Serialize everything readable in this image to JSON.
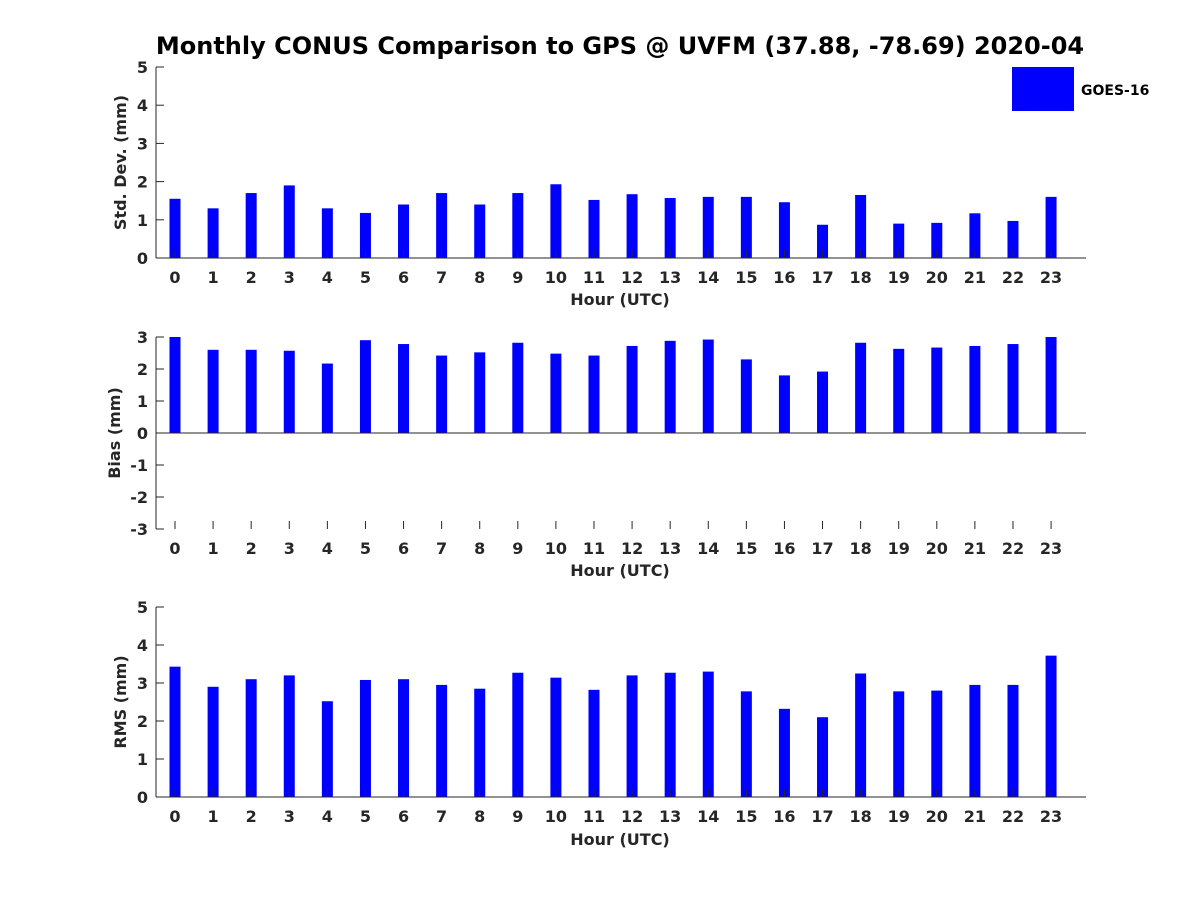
{
  "chart_data": {
    "title": "Monthly CONUS Comparison to GPS @ UVFM (37.88, -78.69) 2020-04",
    "legend": {
      "label": "GOES-16",
      "color": "#0000ff",
      "placement": "top-right"
    },
    "categories": [
      "0",
      "1",
      "2",
      "3",
      "4",
      "5",
      "6",
      "7",
      "8",
      "9",
      "10",
      "11",
      "12",
      "13",
      "14",
      "15",
      "16",
      "17",
      "18",
      "19",
      "20",
      "21",
      "22",
      "23"
    ],
    "panels": [
      {
        "type": "bar",
        "ylabel": "Std. Dev. (mm)",
        "xlabel": "Hour (UTC)",
        "ylim": [
          0,
          5
        ],
        "yticks": [
          "0",
          "1",
          "2",
          "3",
          "4",
          "5"
        ],
        "series": [
          {
            "name": "GOES-16",
            "color": "#0000ff",
            "values": [
              1.55,
              1.3,
              1.7,
              1.9,
              1.3,
              1.18,
              1.4,
              1.7,
              1.4,
              1.7,
              1.93,
              1.52,
              1.67,
              1.57,
              1.6,
              1.6,
              1.46,
              0.87,
              1.65,
              0.9,
              0.92,
              1.17,
              0.97,
              1.6
            ]
          }
        ]
      },
      {
        "type": "bar",
        "ylabel": "Bias (mm)",
        "xlabel": "Hour (UTC)",
        "ylim": [
          -3,
          3
        ],
        "yticks": [
          "-3",
          "-2",
          "-1",
          "0",
          "1",
          "2",
          "3"
        ],
        "series": [
          {
            "name": "GOES-16",
            "color": "#0000ff",
            "values": [
              3.0,
              2.6,
              2.6,
              2.57,
              2.17,
              2.9,
              2.78,
              2.42,
              2.52,
              2.82,
              2.48,
              2.42,
              2.72,
              2.88,
              2.92,
              2.3,
              1.8,
              1.92,
              2.82,
              2.63,
              2.67,
              2.72,
              2.78,
              3.0
            ]
          }
        ]
      },
      {
        "type": "bar",
        "ylabel": "RMS (mm)",
        "xlabel": "Hour (UTC)",
        "ylim": [
          0,
          5
        ],
        "yticks": [
          "0",
          "1",
          "2",
          "3",
          "4",
          "5"
        ],
        "series": [
          {
            "name": "GOES-16",
            "color": "#0000ff",
            "values": [
              3.43,
              2.9,
              3.1,
              3.2,
              2.52,
              3.08,
              3.1,
              2.95,
              2.85,
              3.27,
              3.14,
              2.82,
              3.2,
              3.27,
              3.3,
              2.78,
              2.32,
              2.1,
              3.25,
              2.78,
              2.8,
              2.95,
              2.95,
              3.72
            ]
          }
        ]
      }
    ]
  }
}
